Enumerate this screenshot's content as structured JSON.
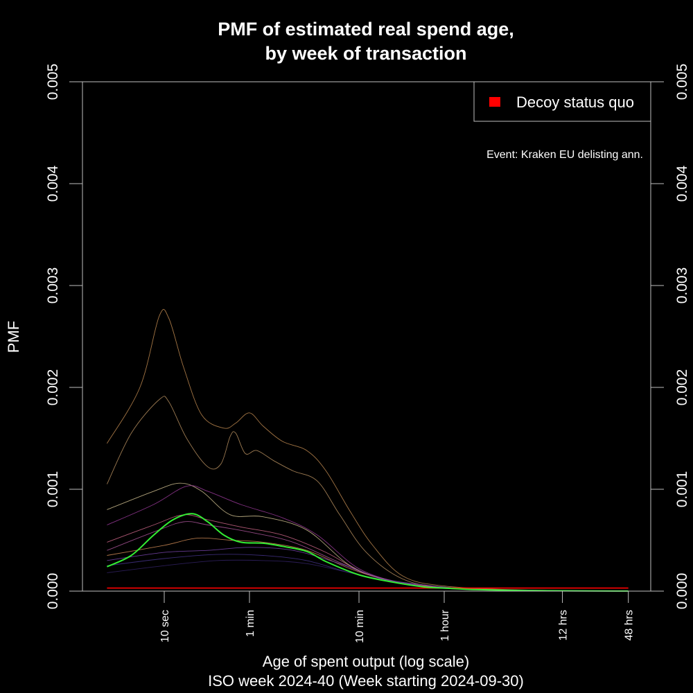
{
  "chart_data": {
    "type": "line",
    "title_lines": [
      "PMF of estimated real spend age,",
      "by week of transaction"
    ],
    "xlabel": "Age of spent output (log scale)",
    "subtitle": "ISO week 2024-40 (Week starting 2024-09-30)",
    "ylabel": "PMF",
    "x_scale": "log",
    "x_unit": "seconds",
    "x_range_seconds": [
      2,
      216000
    ],
    "ylim": [
      0,
      0.005
    ],
    "y_ticks": [
      "0.000",
      "0.001",
      "0.002",
      "0.003",
      "0.004",
      "0.005"
    ],
    "x_ticks": [
      {
        "seconds": 10,
        "label": "10 sec"
      },
      {
        "seconds": 60,
        "label": "1 min"
      },
      {
        "seconds": 600,
        "label": "10 min"
      },
      {
        "seconds": 3600,
        "label": "1 hour"
      },
      {
        "seconds": 43200,
        "label": "12 hrs"
      },
      {
        "seconds": 172800,
        "label": "48 hrs"
      }
    ],
    "grid": false,
    "legend_position": "top-right",
    "legend": [
      {
        "label": "Decoy status quo",
        "color": "#ff0000"
      }
    ],
    "annotation": "Event: Kraken EU delisting ann.",
    "series": [
      {
        "role": "highlight",
        "color": "#33ee33",
        "points": [
          [
            3,
            0.00024
          ],
          [
            5,
            0.00035
          ],
          [
            8,
            0.00055
          ],
          [
            12,
            0.0007
          ],
          [
            18,
            0.00076
          ],
          [
            25,
            0.00068
          ],
          [
            35,
            0.00055
          ],
          [
            50,
            0.00048
          ],
          [
            80,
            0.00047
          ],
          [
            120,
            0.00044
          ],
          [
            200,
            0.00039
          ],
          [
            300,
            0.00029
          ],
          [
            600,
            0.00016
          ],
          [
            1200,
            9e-05
          ],
          [
            2400,
            4e-05
          ],
          [
            3600,
            3e-05
          ],
          [
            7200,
            1.5e-05
          ],
          [
            21600,
            5e-06
          ],
          [
            172800,
            1e-06
          ]
        ]
      },
      {
        "role": "decoy",
        "color": "#ff0000",
        "points": [
          [
            3,
            3e-05
          ],
          [
            172800,
            3e-05
          ]
        ]
      },
      {
        "role": "background",
        "color": "#c08a50",
        "points": [
          [
            3,
            0.00145
          ],
          [
            6,
            0.002
          ],
          [
            9,
            0.0027
          ],
          [
            11,
            0.00268
          ],
          [
            15,
            0.0022
          ],
          [
            22,
            0.00173
          ],
          [
            35,
            0.0016
          ],
          [
            45,
            0.00165
          ],
          [
            60,
            0.00175
          ],
          [
            80,
            0.00162
          ],
          [
            120,
            0.00147
          ],
          [
            200,
            0.00138
          ],
          [
            300,
            0.00118
          ],
          [
            500,
            0.00078
          ],
          [
            800,
            0.00045
          ],
          [
            1500,
            0.00015
          ],
          [
            3600,
            5e-05
          ],
          [
            21600,
            1e-05
          ],
          [
            172800,
            2e-06
          ]
        ]
      },
      {
        "role": "background",
        "color": "#b89060",
        "points": [
          [
            3,
            0.00105
          ],
          [
            5,
            0.00155
          ],
          [
            9,
            0.00188
          ],
          [
            11,
            0.00186
          ],
          [
            16,
            0.0015
          ],
          [
            25,
            0.00122
          ],
          [
            33,
            0.00125
          ],
          [
            40,
            0.00152
          ],
          [
            45,
            0.00155
          ],
          [
            55,
            0.00135
          ],
          [
            70,
            0.00138
          ],
          [
            100,
            0.00128
          ],
          [
            150,
            0.00118
          ],
          [
            250,
            0.00108
          ],
          [
            400,
            0.00075
          ],
          [
            700,
            0.00038
          ],
          [
            1500,
            0.00012
          ],
          [
            3600,
            4e-05
          ],
          [
            21600,
            8e-06
          ],
          [
            172800,
            2e-06
          ]
        ]
      },
      {
        "role": "background",
        "color": "#d0c090",
        "points": [
          [
            3,
            0.0008
          ],
          [
            8,
            0.00098
          ],
          [
            14,
            0.00106
          ],
          [
            22,
            0.00098
          ],
          [
            40,
            0.00075
          ],
          [
            80,
            0.00073
          ],
          [
            200,
            0.0006
          ],
          [
            500,
            0.00025
          ],
          [
            1200,
            0.0001
          ],
          [
            3600,
            3e-05
          ],
          [
            21600,
            6e-06
          ],
          [
            172800,
            1e-06
          ]
        ]
      },
      {
        "role": "background",
        "color": "#9a3a9a",
        "points": [
          [
            3,
            0.00065
          ],
          [
            8,
            0.00085
          ],
          [
            16,
            0.00103
          ],
          [
            25,
            0.00098
          ],
          [
            50,
            0.00085
          ],
          [
            120,
            0.00072
          ],
          [
            250,
            0.00055
          ],
          [
            600,
            0.00022
          ],
          [
            1500,
            8e-05
          ],
          [
            3600,
            3e-05
          ],
          [
            21600,
            5e-06
          ],
          [
            172800,
            1e-06
          ]
        ]
      },
      {
        "role": "background",
        "color": "#cc6688",
        "points": [
          [
            3,
            0.00048
          ],
          [
            8,
            0.00065
          ],
          [
            15,
            0.00075
          ],
          [
            25,
            0.0007
          ],
          [
            50,
            0.00063
          ],
          [
            120,
            0.00055
          ],
          [
            300,
            0.00038
          ],
          [
            700,
            0.00017
          ],
          [
            2000,
            6e-05
          ],
          [
            7200,
            2e-05
          ],
          [
            43200,
            4e-06
          ],
          [
            172800,
            1e-06
          ]
        ]
      },
      {
        "role": "background",
        "color": "#aa5599",
        "points": [
          [
            3,
            0.0004
          ],
          [
            8,
            0.00058
          ],
          [
            15,
            0.00068
          ],
          [
            25,
            0.00065
          ],
          [
            60,
            0.00058
          ],
          [
            150,
            0.00048
          ],
          [
            400,
            0.00028
          ],
          [
            900,
            0.00013
          ],
          [
            2500,
            5e-05
          ],
          [
            7200,
            1.5e-05
          ],
          [
            172800,
            1e-06
          ]
        ]
      },
      {
        "role": "background",
        "color": "#cc8855",
        "points": [
          [
            3,
            0.00035
          ],
          [
            10,
            0.00045
          ],
          [
            20,
            0.00052
          ],
          [
            40,
            0.0005
          ],
          [
            80,
            0.00048
          ],
          [
            200,
            0.0004
          ],
          [
            500,
            0.00022
          ],
          [
            1200,
            0.0001
          ],
          [
            3600,
            3e-05
          ],
          [
            21600,
            5e-06
          ],
          [
            172800,
            1e-06
          ]
        ]
      },
      {
        "role": "background",
        "color": "#7744aa",
        "points": [
          [
            3,
            0.0003
          ],
          [
            10,
            0.00038
          ],
          [
            25,
            0.0004
          ],
          [
            60,
            0.00043
          ],
          [
            150,
            0.0004
          ],
          [
            400,
            0.00027
          ],
          [
            1000,
            0.00012
          ],
          [
            2400,
            6e-05
          ],
          [
            3600,
            4e-05
          ],
          [
            10000,
            1e-05
          ],
          [
            172800,
            1e-06
          ]
        ]
      },
      {
        "role": "background",
        "color": "#443388",
        "points": [
          [
            3,
            0.00025
          ],
          [
            10,
            0.00032
          ],
          [
            30,
            0.00036
          ],
          [
            80,
            0.00035
          ],
          [
            200,
            0.0003
          ],
          [
            500,
            0.00018
          ],
          [
            1500,
            8e-05
          ],
          [
            5000,
            2e-05
          ],
          [
            172800,
            1e-06
          ]
        ]
      },
      {
        "role": "background",
        "color": "#332266",
        "points": [
          [
            3,
            0.00018
          ],
          [
            10,
            0.00025
          ],
          [
            30,
            0.0003
          ],
          [
            80,
            0.0003
          ],
          [
            200,
            0.00027
          ],
          [
            600,
            0.00016
          ],
          [
            1500,
            7e-05
          ],
          [
            5000,
            2e-05
          ],
          [
            172800,
            1e-06
          ]
        ]
      }
    ]
  }
}
